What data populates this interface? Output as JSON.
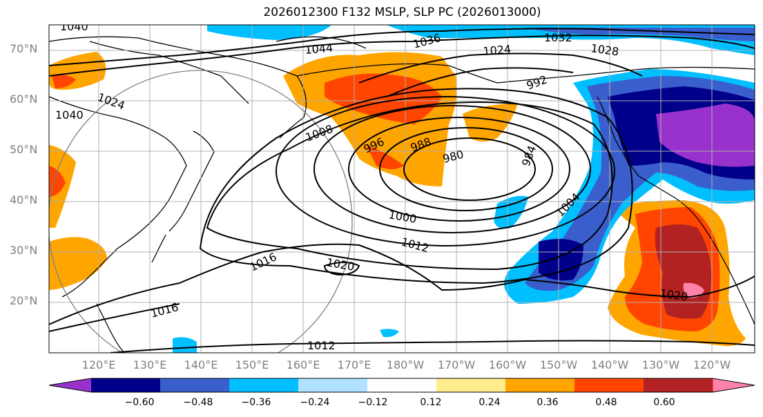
{
  "title": "2026012300 F132 MSLP, SLP PC (2026013000)",
  "lat_labels": [
    "70°N",
    "60°N",
    "50°N",
    "40°N",
    "30°N",
    "20°N"
  ],
  "lon_labels": [
    "120°E",
    "130°E",
    "140°E",
    "150°E",
    "160°E",
    "170°E",
    "180°W",
    "170°W",
    "160°W",
    "150°W",
    "140°W",
    "130°W",
    "120°W"
  ],
  "colorbar": {
    "ticks": [
      "−0.60",
      "−0.48",
      "−0.36",
      "−0.24",
      "−0.12",
      "0.12",
      "0.24",
      "0.36",
      "0.48",
      "0.60"
    ],
    "colors": [
      "#9932cc",
      "#00008b",
      "#3a5fcd",
      "#00bfff",
      "#b0e2ff",
      "#ffffff",
      "#ffec8b",
      "#ffa500",
      "#ff4500",
      "#b22222",
      "#ff82ab"
    ]
  },
  "contour_labels": [
    "1040",
    "1044",
    "1036",
    "1032",
    "1028",
    "1024",
    "1024",
    "1040",
    "992",
    "1008",
    "996",
    "988",
    "980",
    "984",
    "1000",
    "1004",
    "1012",
    "1016",
    "1020",
    "1016",
    "1020",
    "1012"
  ]
}
